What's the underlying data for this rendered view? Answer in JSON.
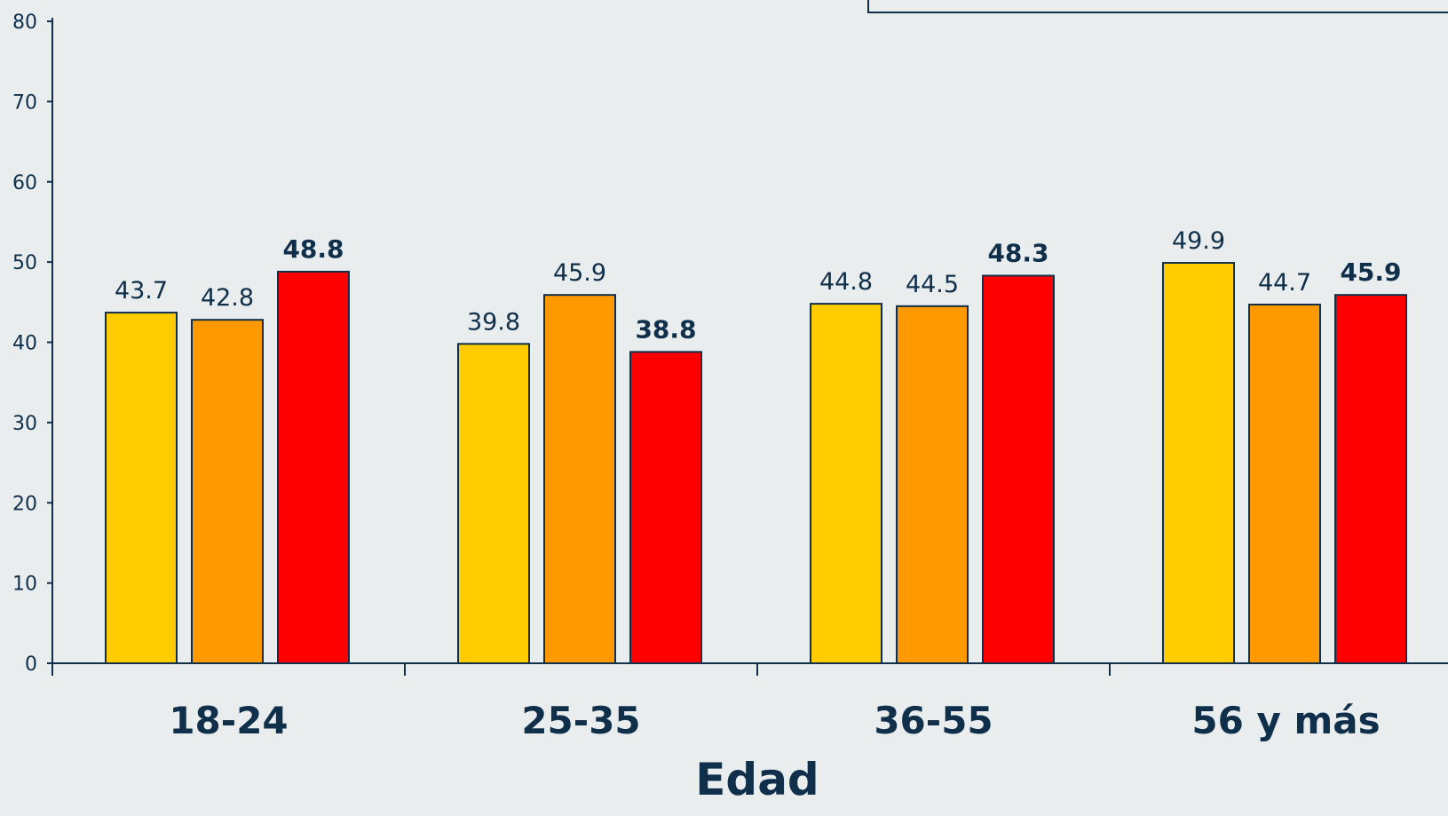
{
  "chart_data": {
    "type": "bar",
    "xlabel": "Edad",
    "categories": [
      "18-24",
      "25-35",
      "36-55",
      "56 y más"
    ],
    "series": [
      {
        "values": [
          43.7,
          39.8,
          44.8,
          49.9
        ],
        "color": "#ffcc00",
        "label_bold": false
      },
      {
        "values": [
          42.8,
          45.9,
          44.5,
          44.7
        ],
        "color": "#ff9900",
        "label_bold": false
      },
      {
        "values": [
          48.8,
          38.8,
          48.3,
          45.9
        ],
        "color": "#ff0000",
        "label_bold": true
      }
    ],
    "ylim": [
      0,
      80
    ],
    "yticks": [
      0,
      10,
      20,
      30,
      40,
      50,
      60,
      70,
      80
    ],
    "grid": false,
    "colors": {
      "background": "#e9edee",
      "axis": "#0f2f4a",
      "text": "#0f2f4a",
      "bar_outline": "#0f2f4a"
    }
  }
}
